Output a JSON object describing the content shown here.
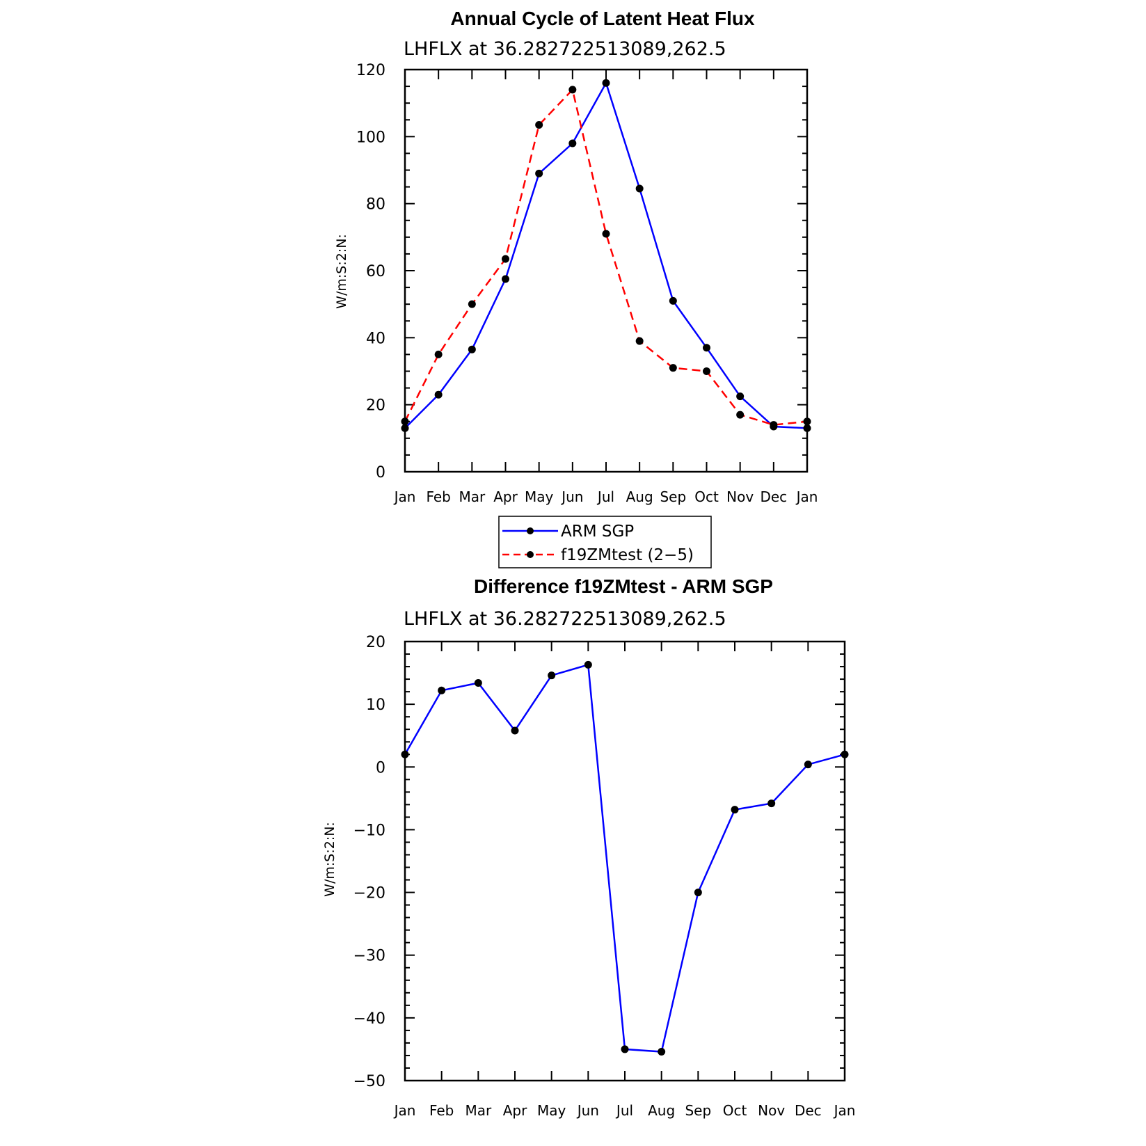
{
  "colors": {
    "blue": "#0000ff",
    "red": "#ff0000",
    "marker": "#000000"
  },
  "chart_data": [
    {
      "type": "line",
      "title": "Annual Cycle of Latent Heat Flux",
      "subtitle": "LHFLX at 36.282722513089,262.5",
      "ylabel": "W/m:S:2:N:",
      "xlabel": "",
      "categories": [
        "Jan",
        "Feb",
        "Mar",
        "Apr",
        "May",
        "Jun",
        "Jul",
        "Aug",
        "Sep",
        "Oct",
        "Nov",
        "Dec",
        "Jan"
      ],
      "ylim": [
        0,
        120
      ],
      "yticks": [
        0,
        20,
        40,
        60,
        80,
        100,
        120
      ],
      "yminor": 5,
      "series": [
        {
          "name": "ARM SGP",
          "color": "#0000ff",
          "dashed": false,
          "values": [
            13,
            23,
            36.5,
            57.5,
            89,
            98,
            116,
            84.5,
            51,
            37,
            22.5,
            13.5,
            13
          ]
        },
        {
          "name": "f19ZMtest (2−5)",
          "color": "#ff0000",
          "dashed": true,
          "values": [
            15,
            35,
            50,
            63.5,
            103.5,
            114,
            71,
            39,
            31,
            30,
            17,
            14,
            15
          ]
        }
      ],
      "legend": {
        "position": "bottom-center",
        "entries": [
          "ARM SGP",
          "f19ZMtest (2−5)"
        ]
      }
    },
    {
      "type": "line",
      "title": "Difference f19ZMtest - ARM SGP",
      "subtitle": "LHFLX at 36.282722513089,262.5",
      "ylabel": "W/m:S:2:N:",
      "xlabel": "",
      "categories": [
        "Jan",
        "Feb",
        "Mar",
        "Apr",
        "May",
        "Jun",
        "Jul",
        "Aug",
        "Sep",
        "Oct",
        "Nov",
        "Dec",
        "Jan"
      ],
      "ylim": [
        -50,
        20
      ],
      "yticks": [
        -50,
        -40,
        -30,
        -20,
        -10,
        0,
        10,
        20
      ],
      "ytick_labels": [
        "−50",
        "−40",
        "−30",
        "−20",
        "−10",
        "0",
        "10",
        "20"
      ],
      "yminor": 2,
      "series": [
        {
          "name": "Difference",
          "color": "#0000ff",
          "dashed": false,
          "values": [
            2,
            12.2,
            13.4,
            5.8,
            14.6,
            16.3,
            -45,
            -45.4,
            -20,
            -6.8,
            -5.8,
            0.4,
            2
          ]
        }
      ]
    }
  ]
}
